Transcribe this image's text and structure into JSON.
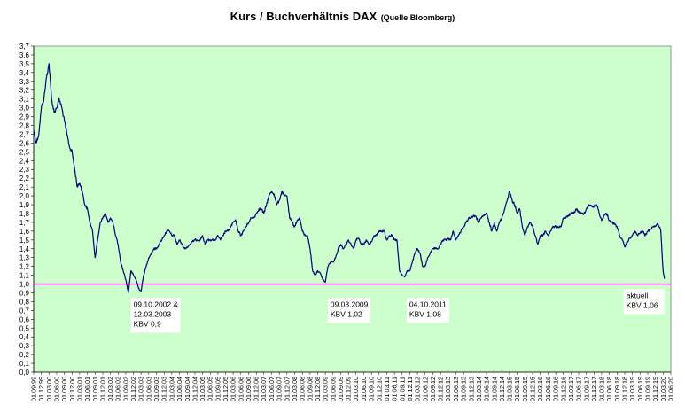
{
  "chart_data": {
    "type": "line",
    "title": "Kurs / Buchverhältnis DAX",
    "subtitle": "(Quelle Bloomberg)",
    "xlabel": "",
    "ylabel": "",
    "ylim": [
      0,
      3.7
    ],
    "y_ticks": [
      "0,0",
      "0,1",
      "0,2",
      "0,3",
      "0,4",
      "0,5",
      "0,6",
      "0,7",
      "0,8",
      "0,9",
      "1,0",
      "1,1",
      "1,2",
      "1,3",
      "1,4",
      "1,5",
      "1,6",
      "1,7",
      "1,8",
      "1,9",
      "2,0",
      "2,1",
      "2,2",
      "2,3",
      "2,4",
      "2,5",
      "2,6",
      "2,7",
      "2,8",
      "2,9",
      "3,0",
      "3,1",
      "3,2",
      "3,3",
      "3,4",
      "3,5",
      "3,6",
      "3,7"
    ],
    "x_start": "1999-09-01",
    "x_end": "2020-06-01",
    "x_tick_interval_months": 3,
    "x_tick_format": "01.MM.YY",
    "grid": false,
    "background_color": "#ccffcc",
    "line_color": "#000080",
    "reference_line": {
      "value": 1.0,
      "color": "#ff00ff"
    },
    "series": [
      {
        "name": "",
        "points": [
          [
            "1999-09-01",
            2.75
          ],
          [
            "1999-10-01",
            2.6
          ],
          [
            "1999-11-01",
            2.7
          ],
          [
            "1999-12-01",
            3.0
          ],
          [
            "2000-01-01",
            3.1
          ],
          [
            "2000-02-01",
            3.35
          ],
          [
            "2000-03-01",
            3.5
          ],
          [
            "2000-04-01",
            3.1
          ],
          [
            "2000-05-01",
            2.95
          ],
          [
            "2000-06-01",
            3.0
          ],
          [
            "2000-07-01",
            3.1
          ],
          [
            "2000-08-01",
            3.0
          ],
          [
            "2000-09-01",
            2.85
          ],
          [
            "2000-10-01",
            2.7
          ],
          [
            "2000-11-01",
            2.55
          ],
          [
            "2000-12-01",
            2.5
          ],
          [
            "2001-01-01",
            2.3
          ],
          [
            "2001-02-01",
            2.1
          ],
          [
            "2001-03-01",
            2.15
          ],
          [
            "2001-04-01",
            2.05
          ],
          [
            "2001-05-01",
            1.9
          ],
          [
            "2001-06-01",
            1.85
          ],
          [
            "2001-07-01",
            1.7
          ],
          [
            "2001-08-01",
            1.6
          ],
          [
            "2001-09-01",
            1.3
          ],
          [
            "2001-10-01",
            1.5
          ],
          [
            "2001-11-01",
            1.7
          ],
          [
            "2001-12-01",
            1.75
          ],
          [
            "2002-01-01",
            1.8
          ],
          [
            "2002-02-01",
            1.7
          ],
          [
            "2002-03-01",
            1.75
          ],
          [
            "2002-04-01",
            1.7
          ],
          [
            "2002-05-01",
            1.55
          ],
          [
            "2002-06-01",
            1.45
          ],
          [
            "2002-07-01",
            1.25
          ],
          [
            "2002-08-01",
            1.15
          ],
          [
            "2002-09-01",
            1.05
          ],
          [
            "2002-10-01",
            0.9
          ],
          [
            "2002-11-01",
            1.15
          ],
          [
            "2002-12-01",
            1.1
          ],
          [
            "2003-01-01",
            1.05
          ],
          [
            "2003-02-01",
            0.95
          ],
          [
            "2003-03-01",
            0.92
          ],
          [
            "2003-04-01",
            1.1
          ],
          [
            "2003-05-01",
            1.2
          ],
          [
            "2003-06-01",
            1.3
          ],
          [
            "2003-07-01",
            1.35
          ],
          [
            "2003-08-01",
            1.4
          ],
          [
            "2003-09-01",
            1.4
          ],
          [
            "2003-10-01",
            1.45
          ],
          [
            "2003-11-01",
            1.5
          ],
          [
            "2003-12-01",
            1.55
          ],
          [
            "2004-01-01",
            1.6
          ],
          [
            "2004-02-01",
            1.6
          ],
          [
            "2004-03-01",
            1.55
          ],
          [
            "2004-04-01",
            1.55
          ],
          [
            "2004-05-01",
            1.45
          ],
          [
            "2004-06-01",
            1.5
          ],
          [
            "2004-07-01",
            1.45
          ],
          [
            "2004-08-01",
            1.4
          ],
          [
            "2004-09-01",
            1.42
          ],
          [
            "2004-10-01",
            1.45
          ],
          [
            "2004-11-01",
            1.48
          ],
          [
            "2004-12-01",
            1.5
          ],
          [
            "2005-01-01",
            1.5
          ],
          [
            "2005-02-01",
            1.5
          ],
          [
            "2005-03-01",
            1.55
          ],
          [
            "2005-04-01",
            1.45
          ],
          [
            "2005-05-01",
            1.5
          ],
          [
            "2005-06-01",
            1.5
          ],
          [
            "2005-07-01",
            1.5
          ],
          [
            "2005-08-01",
            1.5
          ],
          [
            "2005-09-01",
            1.55
          ],
          [
            "2005-10-01",
            1.5
          ],
          [
            "2005-11-01",
            1.55
          ],
          [
            "2005-12-01",
            1.6
          ],
          [
            "2006-01-01",
            1.6
          ],
          [
            "2006-02-01",
            1.65
          ],
          [
            "2006-03-01",
            1.7
          ],
          [
            "2006-04-01",
            1.72
          ],
          [
            "2006-05-01",
            1.6
          ],
          [
            "2006-06-01",
            1.55
          ],
          [
            "2006-07-01",
            1.6
          ],
          [
            "2006-08-01",
            1.65
          ],
          [
            "2006-09-01",
            1.7
          ],
          [
            "2006-10-01",
            1.75
          ],
          [
            "2006-11-01",
            1.75
          ],
          [
            "2006-12-01",
            1.8
          ],
          [
            "2007-01-01",
            1.85
          ],
          [
            "2007-02-01",
            1.85
          ],
          [
            "2007-03-01",
            1.8
          ],
          [
            "2007-04-01",
            1.9
          ],
          [
            "2007-05-01",
            2.0
          ],
          [
            "2007-06-01",
            2.05
          ],
          [
            "2007-07-01",
            2.02
          ],
          [
            "2007-08-01",
            1.9
          ],
          [
            "2007-09-01",
            1.95
          ],
          [
            "2007-10-01",
            2.05
          ],
          [
            "2007-11-01",
            2.0
          ],
          [
            "2007-12-01",
            2.0
          ],
          [
            "2008-01-01",
            1.75
          ],
          [
            "2008-02-01",
            1.7
          ],
          [
            "2008-03-01",
            1.65
          ],
          [
            "2008-04-01",
            1.72
          ],
          [
            "2008-05-01",
            1.75
          ],
          [
            "2008-06-01",
            1.6
          ],
          [
            "2008-07-01",
            1.55
          ],
          [
            "2008-08-01",
            1.55
          ],
          [
            "2008-09-01",
            1.4
          ],
          [
            "2008-10-01",
            1.15
          ],
          [
            "2008-11-01",
            1.1
          ],
          [
            "2008-12-01",
            1.15
          ],
          [
            "2009-01-01",
            1.12
          ],
          [
            "2009-02-01",
            1.05
          ],
          [
            "2009-03-01",
            1.02
          ],
          [
            "2009-04-01",
            1.2
          ],
          [
            "2009-05-01",
            1.25
          ],
          [
            "2009-06-01",
            1.25
          ],
          [
            "2009-07-01",
            1.3
          ],
          [
            "2009-08-01",
            1.4
          ],
          [
            "2009-09-01",
            1.45
          ],
          [
            "2009-10-01",
            1.4
          ],
          [
            "2009-11-01",
            1.45
          ],
          [
            "2009-12-01",
            1.5
          ],
          [
            "2010-01-01",
            1.45
          ],
          [
            "2010-02-01",
            1.4
          ],
          [
            "2010-03-01",
            1.5
          ],
          [
            "2010-04-01",
            1.52
          ],
          [
            "2010-05-01",
            1.45
          ],
          [
            "2010-06-01",
            1.45
          ],
          [
            "2010-07-01",
            1.5
          ],
          [
            "2010-08-01",
            1.45
          ],
          [
            "2010-09-01",
            1.48
          ],
          [
            "2010-10-01",
            1.55
          ],
          [
            "2010-11-01",
            1.55
          ],
          [
            "2010-12-01",
            1.6
          ],
          [
            "2011-01-01",
            1.6
          ],
          [
            "2011-02-01",
            1.6
          ],
          [
            "2011-03-01",
            1.5
          ],
          [
            "2011-04-01",
            1.55
          ],
          [
            "2011-05-01",
            1.55
          ],
          [
            "2011-06-01",
            1.5
          ],
          [
            "2011-07-01",
            1.5
          ],
          [
            "2011-08-01",
            1.15
          ],
          [
            "2011-09-01",
            1.1
          ],
          [
            "2011-10-01",
            1.08
          ],
          [
            "2011-11-01",
            1.15
          ],
          [
            "2011-12-01",
            1.15
          ],
          [
            "2012-01-01",
            1.25
          ],
          [
            "2012-02-01",
            1.35
          ],
          [
            "2012-03-01",
            1.4
          ],
          [
            "2012-04-01",
            1.35
          ],
          [
            "2012-05-01",
            1.2
          ],
          [
            "2012-06-01",
            1.2
          ],
          [
            "2012-07-01",
            1.3
          ],
          [
            "2012-08-01",
            1.35
          ],
          [
            "2012-09-01",
            1.4
          ],
          [
            "2012-10-01",
            1.4
          ],
          [
            "2012-11-01",
            1.4
          ],
          [
            "2012-12-01",
            1.45
          ],
          [
            "2013-01-01",
            1.5
          ],
          [
            "2013-02-01",
            1.5
          ],
          [
            "2013-03-01",
            1.52
          ],
          [
            "2013-04-01",
            1.5
          ],
          [
            "2013-05-01",
            1.6
          ],
          [
            "2013-06-01",
            1.5
          ],
          [
            "2013-07-01",
            1.55
          ],
          [
            "2013-08-01",
            1.6
          ],
          [
            "2013-09-01",
            1.65
          ],
          [
            "2013-10-01",
            1.7
          ],
          [
            "2013-11-01",
            1.75
          ],
          [
            "2013-12-01",
            1.75
          ],
          [
            "2014-01-01",
            1.78
          ],
          [
            "2014-02-01",
            1.75
          ],
          [
            "2014-03-01",
            1.7
          ],
          [
            "2014-04-01",
            1.75
          ],
          [
            "2014-05-01",
            1.78
          ],
          [
            "2014-06-01",
            1.8
          ],
          [
            "2014-07-01",
            1.7
          ],
          [
            "2014-08-01",
            1.6
          ],
          [
            "2014-09-01",
            1.7
          ],
          [
            "2014-10-01",
            1.6
          ],
          [
            "2014-11-01",
            1.7
          ],
          [
            "2014-12-01",
            1.75
          ],
          [
            "2015-01-01",
            1.85
          ],
          [
            "2015-02-01",
            1.95
          ],
          [
            "2015-03-01",
            2.05
          ],
          [
            "2015-04-01",
            1.95
          ],
          [
            "2015-05-01",
            1.9
          ],
          [
            "2015-06-01",
            1.8
          ],
          [
            "2015-07-01",
            1.85
          ],
          [
            "2015-08-01",
            1.65
          ],
          [
            "2015-09-01",
            1.55
          ],
          [
            "2015-10-01",
            1.65
          ],
          [
            "2015-11-01",
            1.7
          ],
          [
            "2015-12-01",
            1.65
          ],
          [
            "2016-01-01",
            1.55
          ],
          [
            "2016-02-01",
            1.45
          ],
          [
            "2016-03-01",
            1.55
          ],
          [
            "2016-04-01",
            1.55
          ],
          [
            "2016-05-01",
            1.6
          ],
          [
            "2016-06-01",
            1.55
          ],
          [
            "2016-07-01",
            1.6
          ],
          [
            "2016-08-01",
            1.65
          ],
          [
            "2016-09-01",
            1.65
          ],
          [
            "2016-10-01",
            1.65
          ],
          [
            "2016-11-01",
            1.65
          ],
          [
            "2016-12-01",
            1.75
          ],
          [
            "2017-01-01",
            1.75
          ],
          [
            "2017-02-01",
            1.78
          ],
          [
            "2017-03-01",
            1.8
          ],
          [
            "2017-04-01",
            1.8
          ],
          [
            "2017-05-01",
            1.85
          ],
          [
            "2017-06-01",
            1.82
          ],
          [
            "2017-07-01",
            1.8
          ],
          [
            "2017-08-01",
            1.8
          ],
          [
            "2017-09-01",
            1.85
          ],
          [
            "2017-10-01",
            1.9
          ],
          [
            "2017-11-01",
            1.88
          ],
          [
            "2017-12-01",
            1.88
          ],
          [
            "2018-01-01",
            1.9
          ],
          [
            "2018-02-01",
            1.8
          ],
          [
            "2018-03-01",
            1.72
          ],
          [
            "2018-04-01",
            1.78
          ],
          [
            "2018-05-01",
            1.8
          ],
          [
            "2018-06-01",
            1.72
          ],
          [
            "2018-07-01",
            1.7
          ],
          [
            "2018-08-01",
            1.68
          ],
          [
            "2018-09-01",
            1.65
          ],
          [
            "2018-10-01",
            1.55
          ],
          [
            "2018-11-01",
            1.5
          ],
          [
            "2018-12-01",
            1.42
          ],
          [
            "2019-01-01",
            1.48
          ],
          [
            "2019-02-01",
            1.52
          ],
          [
            "2019-03-01",
            1.55
          ],
          [
            "2019-04-01",
            1.6
          ],
          [
            "2019-05-01",
            1.55
          ],
          [
            "2019-06-01",
            1.58
          ],
          [
            "2019-07-01",
            1.6
          ],
          [
            "2019-08-01",
            1.55
          ],
          [
            "2019-09-01",
            1.6
          ],
          [
            "2019-10-01",
            1.62
          ],
          [
            "2019-11-01",
            1.65
          ],
          [
            "2019-12-01",
            1.66
          ],
          [
            "2020-01-01",
            1.68
          ],
          [
            "2020-02-01",
            1.62
          ],
          [
            "2020-03-01",
            1.15
          ],
          [
            "2020-03-16",
            1.06
          ]
        ]
      }
    ],
    "annotations": [
      {
        "date": "2002-10-09",
        "lines": [
          "09.10.2002 &",
          "12.03.2003",
          "KBV 0,9"
        ]
      },
      {
        "date": "2009-03-09",
        "lines": [
          "09.03.2009",
          "KBV 1,02"
        ]
      },
      {
        "date": "2011-10-04",
        "lines": [
          "04.10.2011",
          "KBV 1,08"
        ]
      },
      {
        "date": "2020-03-16",
        "lines": [
          "aktuell",
          "KBV 1,06"
        ]
      }
    ]
  }
}
